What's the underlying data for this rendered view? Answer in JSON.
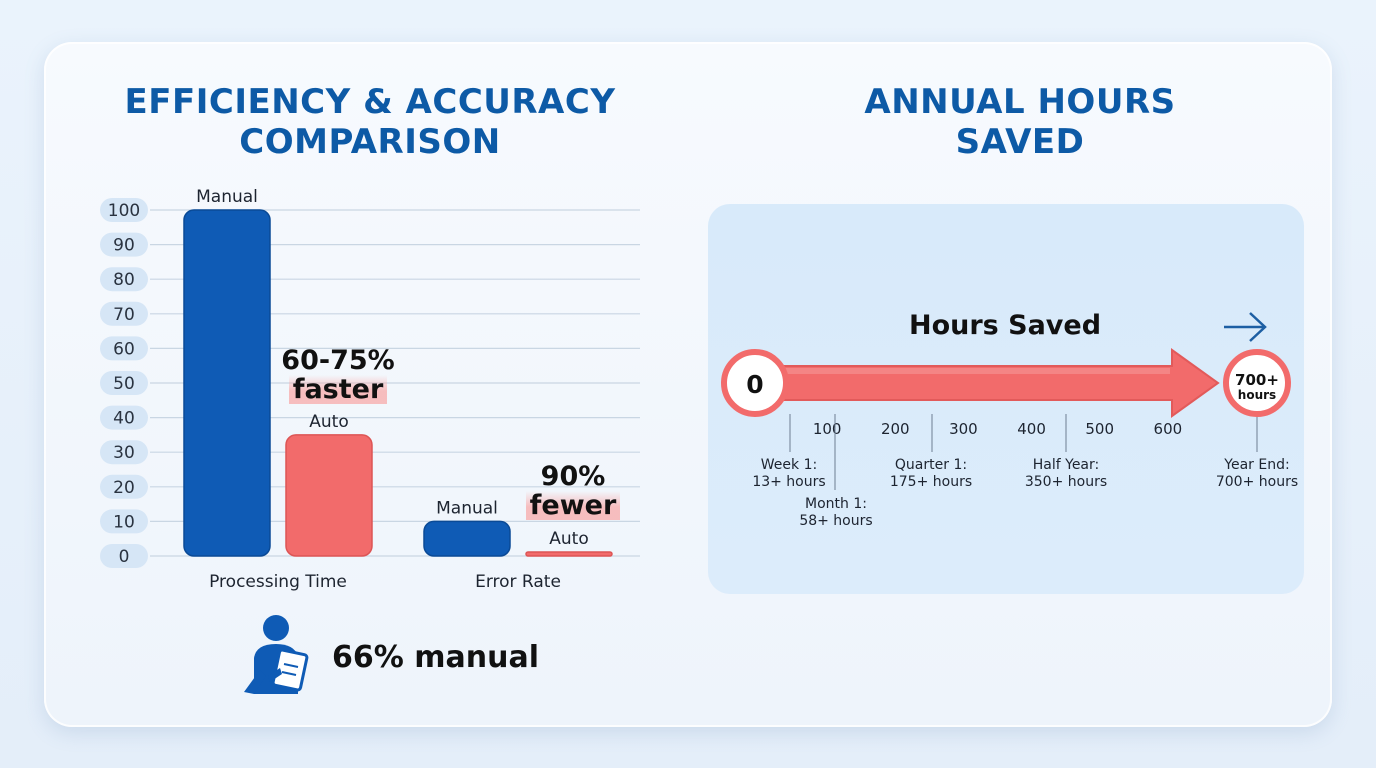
{
  "left_panel": {
    "title_lines": [
      "EFFICIENCY & ACCURACY",
      "COMPARISON"
    ],
    "callout_faster": [
      "60-75%",
      "faster"
    ],
    "callout_fewer": [
      "90%",
      "fewer"
    ],
    "manual_stat": "66% manual"
  },
  "right_panel": {
    "title_lines": [
      "ANNUAL HOURS",
      "SAVED"
    ],
    "arrow_label": "Hours Saved",
    "start_value": "0",
    "end_value_lines": [
      "700+",
      "hours"
    ],
    "scale_ticks": [
      "100",
      "200",
      "300",
      "400",
      "500",
      "600"
    ],
    "milestones": [
      {
        "lines": [
          "Week 1:",
          "13+ hours"
        ]
      },
      {
        "lines": [
          "Month 1:",
          "58+ hours"
        ]
      },
      {
        "lines": [
          "Quarter 1:",
          "175+ hours"
        ]
      },
      {
        "lines": [
          "Half Year:",
          "350+ hours"
        ]
      },
      {
        "lines": [
          "Year End:",
          "700+ hours"
        ]
      }
    ]
  },
  "colors": {
    "manual": "#0f5bb5",
    "auto": "#f26b6b",
    "title": "#0d5aa6",
    "arrow": "#f26b6b"
  },
  "chart_data": [
    {
      "type": "bar",
      "title": "EFFICIENCY & ACCURACY COMPARISON",
      "categories": [
        "Processing Time",
        "Error Rate"
      ],
      "series": [
        {
          "name": "Manual",
          "values": [
            100,
            10
          ]
        },
        {
          "name": "Auto",
          "values": [
            35,
            1
          ]
        }
      ],
      "bar_labels": [
        [
          "Manual",
          "Auto"
        ],
        [
          "Manual",
          "Auto"
        ]
      ],
      "y_ticks": [
        "0",
        "10",
        "20",
        "30",
        "40",
        "50",
        "60",
        "70",
        "80",
        "90",
        "100"
      ],
      "ylim": [
        0,
        100
      ],
      "grid": true,
      "xlabel": "",
      "ylabel": ""
    },
    {
      "type": "line",
      "title": "ANNUAL HOURS SAVED",
      "x_ticks": [
        "100",
        "200",
        "300",
        "400",
        "500",
        "600"
      ],
      "xlim": [
        0,
        700
      ],
      "points": [
        {
          "label": "Week 1",
          "x": 13
        },
        {
          "label": "Month 1",
          "x": 58
        },
        {
          "label": "Quarter 1",
          "x": 175
        },
        {
          "label": "Half Year",
          "x": 350
        },
        {
          "label": "Year End",
          "x": 700
        }
      ]
    }
  ]
}
